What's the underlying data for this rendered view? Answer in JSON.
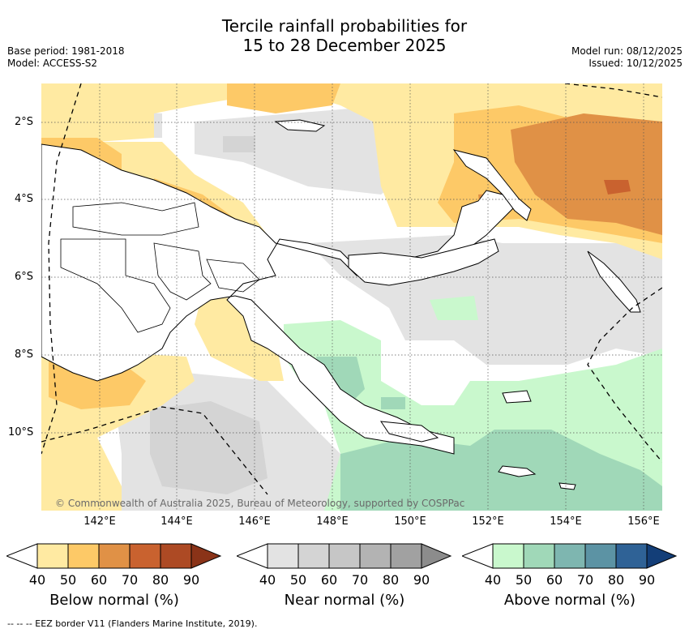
{
  "title": {
    "line1": "Tercile rainfall probabilities for",
    "line2": "15 to 28 December 2025"
  },
  "meta": {
    "base_period": "Base period: 1981-2018",
    "model": "Model: ACCESS-S2",
    "model_run": "Model run: 08/12/2025",
    "issued": "Issued: 10/12/2025"
  },
  "map": {
    "lat_labels": [
      "2°S",
      "4°S",
      "6°S",
      "8°S",
      "10°S"
    ],
    "lon_labels": [
      "142°E",
      "144°E",
      "146°E",
      "148°E",
      "150°E",
      "152°E",
      "154°E",
      "156°E"
    ],
    "copyright": "© Commonwealth of Australia 2025, Bureau of Meteorology, supported by COSPPac"
  },
  "legends": [
    {
      "caption": "Below normal (%)",
      "ticks": [
        "40",
        "50",
        "60",
        "70",
        "80",
        "90"
      ],
      "colors": [
        "#ffeaa2",
        "#fdc967",
        "#e09146",
        "#c9622f",
        "#ad4a24",
        "#8a3318"
      ]
    },
    {
      "caption": "Near normal (%)",
      "ticks": [
        "40",
        "50",
        "60",
        "70",
        "80",
        "90"
      ],
      "colors": [
        "#e3e3e3",
        "#d4d4d4",
        "#c6c6c6",
        "#b3b3b3",
        "#a1a1a1",
        "#8c8c8c"
      ]
    },
    {
      "caption": "Above normal (%)",
      "ticks": [
        "40",
        "50",
        "60",
        "70",
        "80",
        "90"
      ],
      "colors": [
        "#c9f8cd",
        "#a0d8b8",
        "#7eb6b0",
        "#5c93a4",
        "#2f6296",
        "#133e78"
      ]
    }
  ],
  "footnote": "--  --  -- EEZ border V11 (Flanders Marine Institute, 2019)."
}
